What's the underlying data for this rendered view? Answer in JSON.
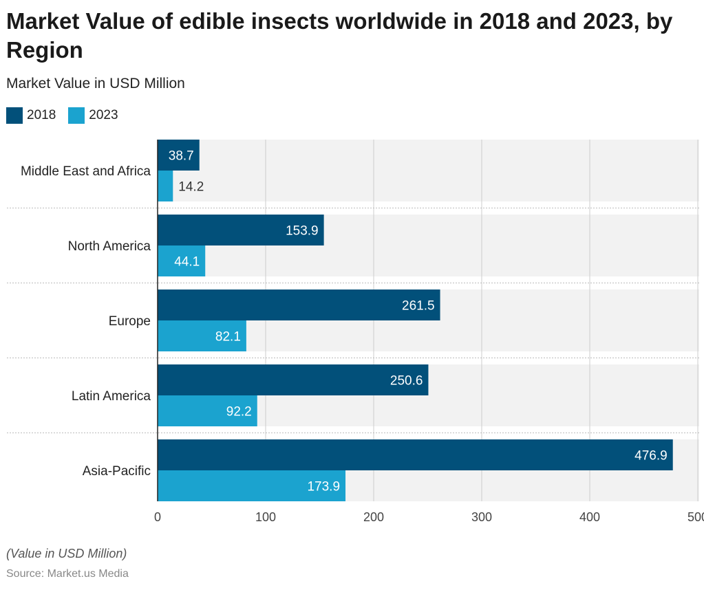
{
  "title": "Market Value of edible insects worldwide in 2018 and 2023, by Region",
  "subtitle": "Market Value in USD Million",
  "note": "(Value in USD Million)",
  "source": "Source: Market.us Media",
  "chart_data": {
    "type": "bar",
    "orientation": "horizontal",
    "categories": [
      "Middle East and Africa",
      "North America",
      "Europe",
      "Latin America",
      "Asia-Pacific"
    ],
    "series": [
      {
        "name": "2018",
        "color": "#02507a",
        "values": [
          38.7,
          153.9,
          261.5,
          250.6,
          476.9
        ]
      },
      {
        "name": "2023",
        "color": "#1ba3cf",
        "values": [
          14.2,
          44.1,
          82.1,
          92.2,
          173.9
        ]
      }
    ],
    "xlim": [
      0,
      500
    ],
    "xticks": [
      0,
      100,
      200,
      300,
      400,
      500
    ],
    "grid": true,
    "legend": "top-left",
    "data_labels": true
  }
}
